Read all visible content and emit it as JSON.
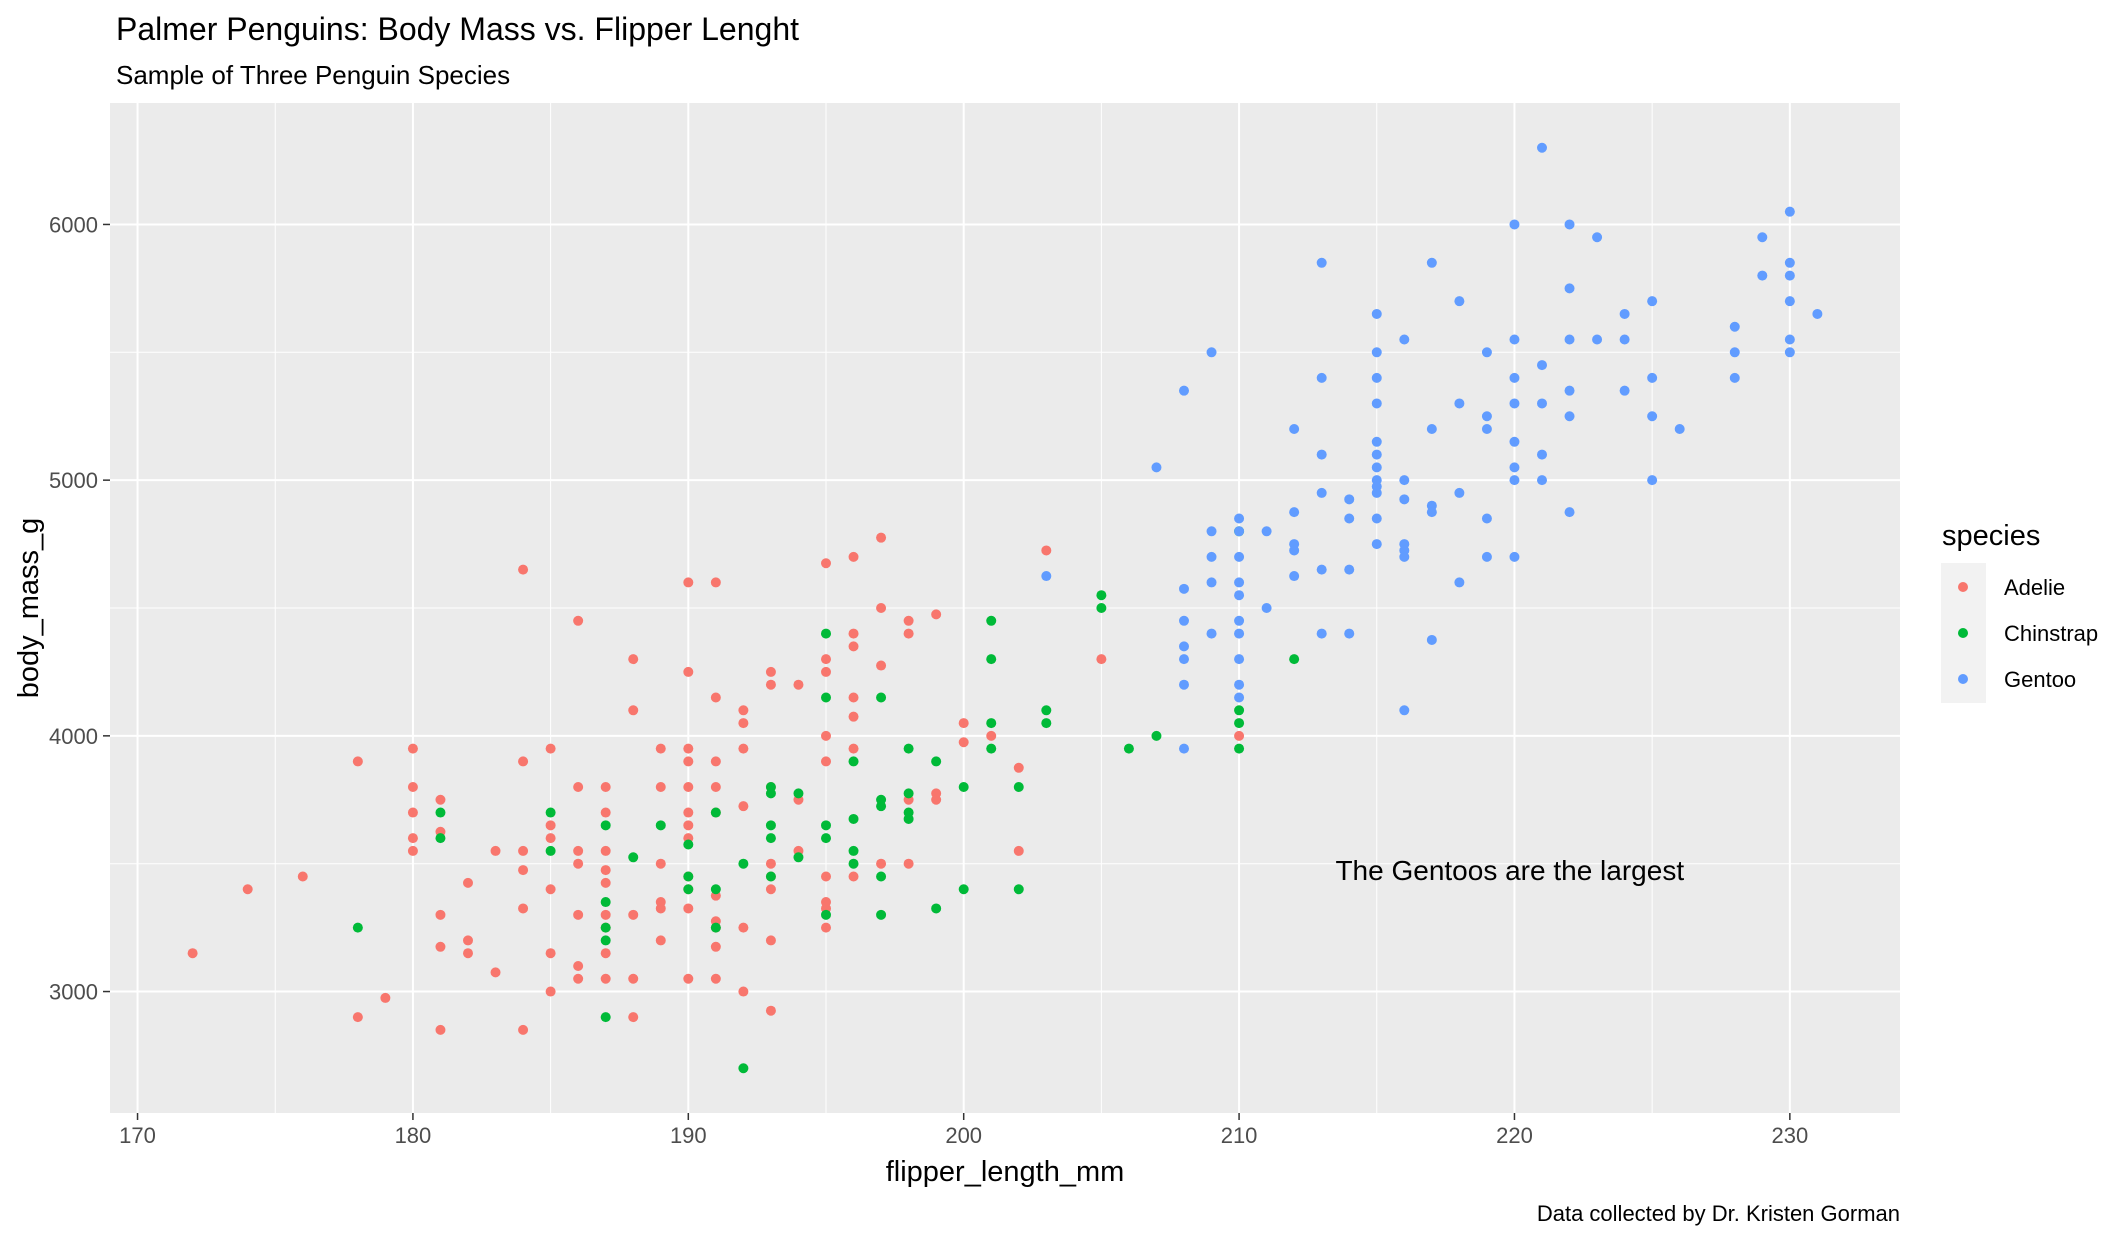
{
  "chart_data": {
    "type": "scatter",
    "title": "Palmer Penguins: Body Mass vs. Flipper Lenght",
    "subtitle": "Sample of Three Penguin Species",
    "xlabel": "flipper_length_mm",
    "ylabel": "body_mass_g",
    "xlim": [
      169,
      234
    ],
    "ylim": [
      2525,
      6475
    ],
    "x_ticks": [
      170,
      180,
      190,
      200,
      210,
      220,
      230
    ],
    "y_ticks": [
      3000,
      4000,
      5000,
      6000
    ],
    "x_tick_labels": [
      "170",
      "180",
      "190",
      "200",
      "210",
      "220",
      "230"
    ],
    "y_tick_labels": [
      "3000",
      "4000",
      "5000",
      "6000"
    ],
    "grid": true,
    "legend": {
      "title": "species",
      "position": "right"
    },
    "annotation": {
      "text": "The Gentoos are the largest",
      "x": 213.5,
      "y": 3475
    },
    "caption": "Data collected by Dr. Kristen Gorman",
    "colors": {
      "panel": "#ebebeb",
      "grid": "#ffffff"
    },
    "series": [
      {
        "name": "Adelie",
        "color": "#f8766d",
        "points": [
          [
            172,
            3150
          ],
          [
            174,
            3400
          ],
          [
            176,
            3450
          ],
          [
            178,
            3900
          ],
          [
            178,
            2900
          ],
          [
            179,
            2975
          ],
          [
            180,
            3950
          ],
          [
            180,
            3800
          ],
          [
            180,
            3700
          ],
          [
            180,
            3600
          ],
          [
            180,
            3550
          ],
          [
            181,
            3750
          ],
          [
            181,
            3625
          ],
          [
            181,
            3300
          ],
          [
            181,
            3175
          ],
          [
            181,
            2850
          ],
          [
            182,
            3425
          ],
          [
            182,
            3200
          ],
          [
            182,
            3150
          ],
          [
            183,
            3550
          ],
          [
            183,
            3075
          ],
          [
            184,
            4650
          ],
          [
            184,
            3900
          ],
          [
            184,
            3550
          ],
          [
            184,
            3475
          ],
          [
            184,
            3325
          ],
          [
            184,
            2850
          ],
          [
            185,
            3950
          ],
          [
            185,
            3650
          ],
          [
            185,
            3600
          ],
          [
            185,
            3400
          ],
          [
            185,
            3150
          ],
          [
            185,
            3000
          ],
          [
            186,
            4450
          ],
          [
            186,
            3800
          ],
          [
            186,
            3550
          ],
          [
            186,
            3500
          ],
          [
            186,
            3300
          ],
          [
            186,
            3100
          ],
          [
            186,
            3050
          ],
          [
            187,
            3800
          ],
          [
            187,
            3700
          ],
          [
            187,
            3550
          ],
          [
            187,
            3475
          ],
          [
            187,
            3425
          ],
          [
            187,
            3300
          ],
          [
            187,
            3250
          ],
          [
            187,
            3150
          ],
          [
            187,
            3050
          ],
          [
            188,
            4300
          ],
          [
            188,
            4100
          ],
          [
            188,
            3300
          ],
          [
            188,
            3050
          ],
          [
            188,
            2900
          ],
          [
            189,
            3950
          ],
          [
            189,
            3800
          ],
          [
            189,
            3500
          ],
          [
            189,
            3350
          ],
          [
            189,
            3325
          ],
          [
            189,
            3200
          ],
          [
            190,
            4600
          ],
          [
            190,
            4250
          ],
          [
            190,
            3950
          ],
          [
            190,
            3900
          ],
          [
            190,
            3800
          ],
          [
            190,
            3700
          ],
          [
            190,
            3650
          ],
          [
            190,
            3600
          ],
          [
            190,
            3450
          ],
          [
            190,
            3400
          ],
          [
            190,
            3325
          ],
          [
            190,
            3050
          ],
          [
            191,
            4600
          ],
          [
            191,
            4150
          ],
          [
            191,
            3900
          ],
          [
            191,
            3800
          ],
          [
            191,
            3700
          ],
          [
            191,
            3375
          ],
          [
            191,
            3275
          ],
          [
            191,
            3250
          ],
          [
            191,
            3175
          ],
          [
            191,
            3050
          ],
          [
            192,
            4100
          ],
          [
            192,
            4050
          ],
          [
            192,
            3950
          ],
          [
            192,
            3725
          ],
          [
            192,
            3250
          ],
          [
            192,
            3000
          ],
          [
            193,
            4250
          ],
          [
            193,
            4200
          ],
          [
            193,
            3800
          ],
          [
            193,
            3500
          ],
          [
            193,
            3450
          ],
          [
            193,
            3400
          ],
          [
            193,
            3200
          ],
          [
            193,
            2925
          ],
          [
            194,
            4200
          ],
          [
            194,
            3750
          ],
          [
            194,
            3550
          ],
          [
            195,
            4675
          ],
          [
            195,
            4300
          ],
          [
            195,
            4250
          ],
          [
            195,
            4000
          ],
          [
            195,
            3900
          ],
          [
            195,
            3450
          ],
          [
            195,
            3350
          ],
          [
            195,
            3325
          ],
          [
            195,
            3250
          ],
          [
            196,
            4700
          ],
          [
            196,
            4400
          ],
          [
            196,
            4350
          ],
          [
            196,
            4150
          ],
          [
            196,
            4075
          ],
          [
            196,
            3950
          ],
          [
            196,
            3450
          ],
          [
            197,
            4775
          ],
          [
            197,
            4500
          ],
          [
            197,
            4275
          ],
          [
            197,
            3500
          ],
          [
            198,
            4450
          ],
          [
            198,
            4400
          ],
          [
            198,
            3750
          ],
          [
            198,
            3500
          ],
          [
            199,
            4475
          ],
          [
            199,
            3775
          ],
          [
            199,
            3750
          ],
          [
            200,
            4050
          ],
          [
            200,
            3975
          ],
          [
            201,
            4000
          ],
          [
            202,
            3875
          ],
          [
            202,
            3550
          ],
          [
            203,
            4725
          ],
          [
            205,
            4300
          ],
          [
            210,
            4000
          ]
        ]
      },
      {
        "name": "Chinstrap",
        "color": "#00ba38",
        "points": [
          [
            178,
            3250
          ],
          [
            181,
            3700
          ],
          [
            181,
            3600
          ],
          [
            185,
            3700
          ],
          [
            185,
            3550
          ],
          [
            187,
            3650
          ],
          [
            187,
            3350
          ],
          [
            187,
            3250
          ],
          [
            187,
            3200
          ],
          [
            187,
            2900
          ],
          [
            188,
            3525
          ],
          [
            189,
            3650
          ],
          [
            190,
            3575
          ],
          [
            190,
            3450
          ],
          [
            190,
            3400
          ],
          [
            191,
            3700
          ],
          [
            191,
            3400
          ],
          [
            191,
            3250
          ],
          [
            192,
            3500
          ],
          [
            192,
            2700
          ],
          [
            193,
            3800
          ],
          [
            193,
            3775
          ],
          [
            193,
            3650
          ],
          [
            193,
            3600
          ],
          [
            193,
            3450
          ],
          [
            194,
            3775
          ],
          [
            194,
            3525
          ],
          [
            195,
            4400
          ],
          [
            195,
            4150
          ],
          [
            195,
            3650
          ],
          [
            195,
            3600
          ],
          [
            195,
            3300
          ],
          [
            196,
            3900
          ],
          [
            196,
            3675
          ],
          [
            196,
            3550
          ],
          [
            196,
            3500
          ],
          [
            197,
            4150
          ],
          [
            197,
            3750
          ],
          [
            197,
            3725
          ],
          [
            197,
            3450
          ],
          [
            197,
            3300
          ],
          [
            198,
            3950
          ],
          [
            198,
            3775
          ],
          [
            198,
            3700
          ],
          [
            198,
            3675
          ],
          [
            199,
            3900
          ],
          [
            199,
            3325
          ],
          [
            200,
            3800
          ],
          [
            200,
            3400
          ],
          [
            201,
            4450
          ],
          [
            201,
            4300
          ],
          [
            201,
            4050
          ],
          [
            201,
            3950
          ],
          [
            202,
            3800
          ],
          [
            202,
            3400
          ],
          [
            203,
            4100
          ],
          [
            203,
            4050
          ],
          [
            205,
            4550
          ],
          [
            205,
            4500
          ],
          [
            206,
            3950
          ],
          [
            207,
            4000
          ],
          [
            210,
            4800
          ],
          [
            210,
            4100
          ],
          [
            210,
            4050
          ],
          [
            210,
            3950
          ],
          [
            212,
            4300
          ]
        ]
      },
      {
        "name": "Gentoo",
        "color": "#619cff",
        "points": [
          [
            203,
            4625
          ],
          [
            207,
            5050
          ],
          [
            208,
            5350
          ],
          [
            208,
            4575
          ],
          [
            208,
            4450
          ],
          [
            208,
            4350
          ],
          [
            208,
            4300
          ],
          [
            208,
            4200
          ],
          [
            208,
            3950
          ],
          [
            209,
            5500
          ],
          [
            209,
            4800
          ],
          [
            209,
            4700
          ],
          [
            209,
            4600
          ],
          [
            209,
            4400
          ],
          [
            210,
            4850
          ],
          [
            210,
            4800
          ],
          [
            210,
            4700
          ],
          [
            210,
            4600
          ],
          [
            210,
            4550
          ],
          [
            210,
            4450
          ],
          [
            210,
            4400
          ],
          [
            210,
            4300
          ],
          [
            210,
            4200
          ],
          [
            210,
            4150
          ],
          [
            211,
            4800
          ],
          [
            211,
            4500
          ],
          [
            212,
            5200
          ],
          [
            212,
            4875
          ],
          [
            212,
            4750
          ],
          [
            212,
            4725
          ],
          [
            212,
            4625
          ],
          [
            213,
            5850
          ],
          [
            213,
            5400
          ],
          [
            213,
            5100
          ],
          [
            213,
            4950
          ],
          [
            213,
            4650
          ],
          [
            213,
            4400
          ],
          [
            214,
            4925
          ],
          [
            214,
            4850
          ],
          [
            214,
            4650
          ],
          [
            214,
            4400
          ],
          [
            215,
            5650
          ],
          [
            215,
            5500
          ],
          [
            215,
            5400
          ],
          [
            215,
            5300
          ],
          [
            215,
            5150
          ],
          [
            215,
            5100
          ],
          [
            215,
            5050
          ],
          [
            215,
            5000
          ],
          [
            215,
            4975
          ],
          [
            215,
            4950
          ],
          [
            215,
            4850
          ],
          [
            215,
            4750
          ],
          [
            216,
            5550
          ],
          [
            216,
            5000
          ],
          [
            216,
            4925
          ],
          [
            216,
            4750
          ],
          [
            216,
            4725
          ],
          [
            216,
            4700
          ],
          [
            216,
            4100
          ],
          [
            217,
            5850
          ],
          [
            217,
            5200
          ],
          [
            217,
            4900
          ],
          [
            217,
            4875
          ],
          [
            217,
            4375
          ],
          [
            218,
            5700
          ],
          [
            218,
            5300
          ],
          [
            218,
            4950
          ],
          [
            218,
            4600
          ],
          [
            219,
            5500
          ],
          [
            219,
            5250
          ],
          [
            219,
            5200
          ],
          [
            219,
            4850
          ],
          [
            219,
            4700
          ],
          [
            220,
            6000
          ],
          [
            220,
            5550
          ],
          [
            220,
            5400
          ],
          [
            220,
            5300
          ],
          [
            220,
            5150
          ],
          [
            220,
            5050
          ],
          [
            220,
            5000
          ],
          [
            220,
            4700
          ],
          [
            221,
            6300
          ],
          [
            221,
            5450
          ],
          [
            221,
            5300
          ],
          [
            221,
            5100
          ],
          [
            221,
            5000
          ],
          [
            222,
            6000
          ],
          [
            222,
            5750
          ],
          [
            222,
            5550
          ],
          [
            222,
            5350
          ],
          [
            222,
            5250
          ],
          [
            222,
            4875
          ],
          [
            223,
            5950
          ],
          [
            223,
            5550
          ],
          [
            224,
            5650
          ],
          [
            224,
            5550
          ],
          [
            224,
            5350
          ],
          [
            225,
            5700
          ],
          [
            225,
            5400
          ],
          [
            225,
            5250
          ],
          [
            225,
            5000
          ],
          [
            226,
            5200
          ],
          [
            228,
            5600
          ],
          [
            228,
            5500
          ],
          [
            228,
            5400
          ],
          [
            229,
            5950
          ],
          [
            229,
            5800
          ],
          [
            230,
            6050
          ],
          [
            230,
            5850
          ],
          [
            230,
            5800
          ],
          [
            230,
            5700
          ],
          [
            230,
            5550
          ],
          [
            230,
            5500
          ],
          [
            231,
            5650
          ]
        ]
      }
    ]
  }
}
